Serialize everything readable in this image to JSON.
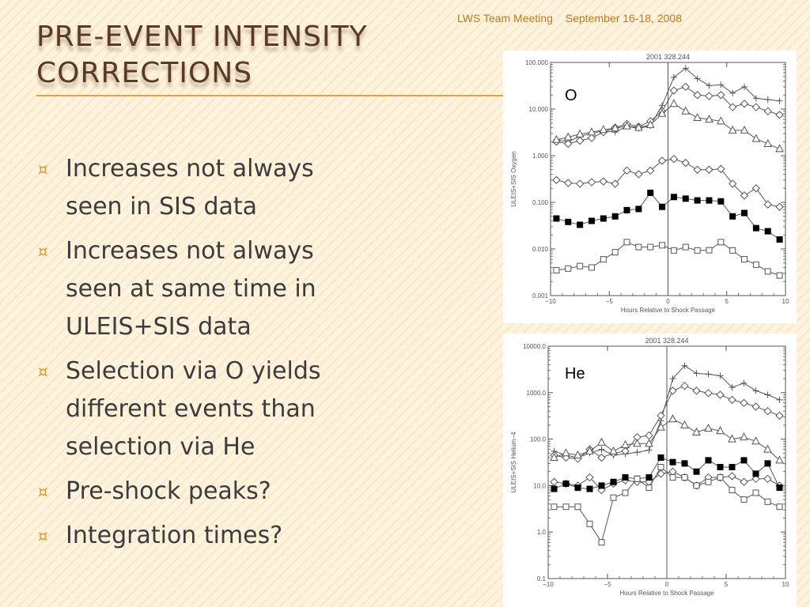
{
  "header": {
    "meeting": "LWS Team Meeting",
    "dates": "September 16-18, 2008"
  },
  "title": "Pre-Event Intensity Corrections",
  "bullets": [
    "Increases not always seen in SIS data",
    "Increases not always seen at same time in ULEIS+SIS data",
    "Selection via O yields different events than selection via He",
    "Pre-shock peaks?",
    "Integration times?"
  ],
  "bullet_marker": "¤",
  "colors": {
    "accent": "#e39b2f",
    "title": "#5a3a24",
    "body_text": "#3c3c3c",
    "header_text": "#c0781e"
  },
  "chart_data": [
    {
      "type": "scatter",
      "title": "2001   328.244",
      "element_label": "O",
      "xlabel": "Hours Relative to Shock Passage",
      "ylabel": "ULEIS+SIS Oxygen",
      "xlim": [
        -10,
        10
      ],
      "ylim": [
        0.001,
        100
      ],
      "yscale": "log",
      "xticks": [
        -10,
        -5,
        0,
        5,
        10
      ],
      "xtick_labels": [
        "−10",
        "−5",
        "0",
        "5",
        "10"
      ],
      "yticks": [
        0.001,
        0.01,
        0.1,
        1,
        10,
        100
      ],
      "ytick_labels": [
        "0.001",
        "0.010",
        "0.100",
        "1.000",
        "10.000",
        "100.000"
      ],
      "vline_x": 0,
      "x": [
        -9.5,
        -8.5,
        -7.5,
        -6.5,
        -5.5,
        -4.5,
        -3.5,
        -2.5,
        -1.5,
        -0.5,
        0.5,
        1.5,
        2.5,
        3.5,
        4.5,
        5.5,
        6.5,
        7.5,
        8.5,
        9.5
      ],
      "series": [
        {
          "marker": "plus",
          "values": [
            2.2,
            2.0,
            2.6,
            3.0,
            3.4,
            3.2,
            4.3,
            3.8,
            4.4,
            12.0,
            48.0,
            75.0,
            45.0,
            32.0,
            33.0,
            22.0,
            30.0,
            17.0,
            16.0,
            15.0
          ]
        },
        {
          "marker": "diamond",
          "values": [
            2.0,
            1.8,
            2.1,
            2.4,
            3.2,
            4.0,
            4.8,
            4.2,
            5.5,
            9.0,
            25.0,
            30.0,
            20.0,
            19.0,
            20.0,
            11.0,
            13.0,
            11.0,
            9.0,
            7.5
          ]
        },
        {
          "marker": "triangle",
          "values": [
            2.2,
            2.5,
            2.9,
            3.2,
            3.6,
            3.9,
            4.3,
            4.0,
            4.6,
            8.0,
            13.0,
            9.0,
            6.5,
            6.0,
            5.5,
            3.5,
            3.5,
            2.3,
            1.8,
            1.4
          ]
        },
        {
          "marker": "diamond",
          "values": [
            0.3,
            0.26,
            0.25,
            0.27,
            0.28,
            0.25,
            0.48,
            0.4,
            0.48,
            0.78,
            0.85,
            0.7,
            0.5,
            0.5,
            0.52,
            0.25,
            0.14,
            0.2,
            0.09,
            0.08
          ]
        },
        {
          "marker": "square-filled",
          "values": [
            0.045,
            0.038,
            0.033,
            0.04,
            0.045,
            0.05,
            0.068,
            0.072,
            0.16,
            0.08,
            0.13,
            0.12,
            0.11,
            0.11,
            0.105,
            0.05,
            0.059,
            0.028,
            0.024,
            0.016
          ]
        },
        {
          "marker": "square-open",
          "values": [
            0.0035,
            0.0038,
            0.0043,
            0.004,
            0.006,
            0.0085,
            0.014,
            0.011,
            0.011,
            0.012,
            0.0093,
            0.011,
            0.0093,
            0.0094,
            0.014,
            0.0093,
            0.006,
            0.0046,
            0.0033,
            0.0027
          ]
        }
      ]
    },
    {
      "type": "scatter",
      "title": "2001   328.244",
      "element_label": "He",
      "xlabel": "Hours Relative to Shock Passage",
      "ylabel": "ULEIS+SIS Helium−4",
      "xlim": [
        -10,
        10
      ],
      "ylim": [
        0.1,
        10000
      ],
      "yscale": "log",
      "xticks": [
        -10,
        -5,
        0,
        5,
        10
      ],
      "xtick_labels": [
        "−10",
        "−5",
        "0",
        "5",
        "10"
      ],
      "yticks": [
        0.1,
        1,
        10,
        100,
        1000,
        10000
      ],
      "ytick_labels": [
        "0.1",
        "1.0",
        "10.0",
        "100.0",
        "1000.0",
        "10000.0"
      ],
      "vline_x": 0,
      "x": [
        -9.5,
        -8.5,
        -7.5,
        -6.5,
        -5.5,
        -4.5,
        -3.5,
        -2.5,
        -1.5,
        -0.5,
        0.5,
        1.5,
        2.5,
        3.5,
        4.5,
        5.5,
        6.5,
        7.5,
        8.5,
        9.5
      ],
      "series": [
        {
          "marker": "plus",
          "values": [
            55.0,
            45.0,
            40.0,
            50.0,
            60.0,
            45.0,
            48.0,
            52.0,
            58.0,
            250.0,
            2000.0,
            3800.0,
            2600.0,
            2500.0,
            2300.0,
            1300.0,
            1600.0,
            1100.0,
            900.0,
            700.0
          ]
        },
        {
          "marker": "diamond",
          "values": [
            45.0,
            40.0,
            38.0,
            60.0,
            40.0,
            50.0,
            55.0,
            110.0,
            120.0,
            320.0,
            1100.0,
            1400.0,
            1100.0,
            980.0,
            900.0,
            700.0,
            600.0,
            500.0,
            400.0,
            320.0
          ]
        },
        {
          "marker": "triangle",
          "values": [
            40.0,
            50.0,
            45.0,
            55.0,
            85.0,
            55.0,
            75.0,
            80.0,
            80.0,
            180.0,
            270.0,
            200.0,
            140.0,
            170.0,
            150.0,
            100.0,
            110.0,
            90.0,
            60.0,
            35.0
          ]
        },
        {
          "marker": "diamond",
          "values": [
            12.0,
            11.0,
            10.0,
            15.0,
            8.0,
            11.0,
            13.0,
            12.0,
            12.0,
            18.0,
            20.0,
            15.0,
            10.0,
            15.0,
            15.0,
            16.0,
            12.0,
            14.0,
            14.0,
            10.0
          ]
        },
        {
          "marker": "square-filled",
          "values": [
            8.5,
            11.0,
            9.0,
            8.5,
            10.0,
            12.0,
            15.0,
            14.0,
            15.0,
            40.0,
            32.0,
            30.0,
            20.0,
            35.0,
            25.0,
            25.0,
            35.0,
            18.0,
            30.0,
            9.0
          ]
        },
        {
          "marker": "square-open",
          "values": [
            3.5,
            3.5,
            3.5,
            1.5,
            0.6,
            5.5,
            7.0,
            14.0,
            9.0,
            25.0,
            15.0,
            15.0,
            10.0,
            12.0,
            15.0,
            8.0,
            5.0,
            7.0,
            4.5,
            3.5
          ]
        }
      ]
    }
  ]
}
